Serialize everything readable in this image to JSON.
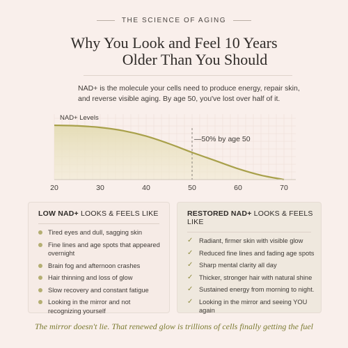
{
  "header": {
    "eyebrow": "THE SCIENCE OF AGING",
    "title_line1": "Why You Look and Feel 10 Years",
    "title_line2": "Older Than You Should"
  },
  "intro": "NAD+ is the molecule your cells need to produce energy, repair skin, and reverse visible aging. By age 50, you've lost over half of it.",
  "colors": {
    "accent": "#a8a04a",
    "fill": "#e9e2c2",
    "background": "#f9efeb"
  },
  "chart_data": {
    "type": "area",
    "title": "",
    "ylabel": "NAD+ Levels",
    "xlabel": "",
    "x_ticks": [
      "20",
      "30",
      "40",
      "50",
      "60",
      "70"
    ],
    "xlim": [
      20,
      70
    ],
    "ylim": [
      0,
      100
    ],
    "grid": true,
    "x": [
      20,
      25,
      30,
      35,
      40,
      45,
      50,
      55,
      60,
      65,
      70
    ],
    "values": [
      100,
      99,
      96,
      90,
      80,
      66,
      50,
      35,
      20,
      8,
      0
    ],
    "annotation": {
      "x": 50,
      "label": "—50% by age 50"
    }
  },
  "low_card": {
    "title_bold": "LOW NAD+",
    "title_rest": " LOOKS & FEELS LIKE",
    "bullet_icon": "dot-icon",
    "items": [
      "Tired eyes and dull, sagging skin",
      "Fine lines and age spots that appeared overnight",
      "Brain fog and afternoon crashes",
      "Hair thinning and loss of glow",
      "Slow recovery and constant fatigue",
      "Looking in the mirror and not recognizing yourself"
    ]
  },
  "restored_card": {
    "title_bold": "RESTORED NAD+",
    "title_rest": " LOOKS & FEELS LIKE",
    "bullet_icon": "check-icon",
    "check_glyph": "✓",
    "items": [
      "Radiant, firmer skin with visible glow",
      "Reduced fine lines and fading age spots",
      "Sharp mental clarity all day",
      "Thicker, stronger hair with natural shine",
      "Sustained energy from morning to night.",
      "Looking in the mirror and seeing YOU again"
    ]
  },
  "footer": "The mirror doesn't lie. That renewed glow is trillions of cells finally getting the fuel"
}
